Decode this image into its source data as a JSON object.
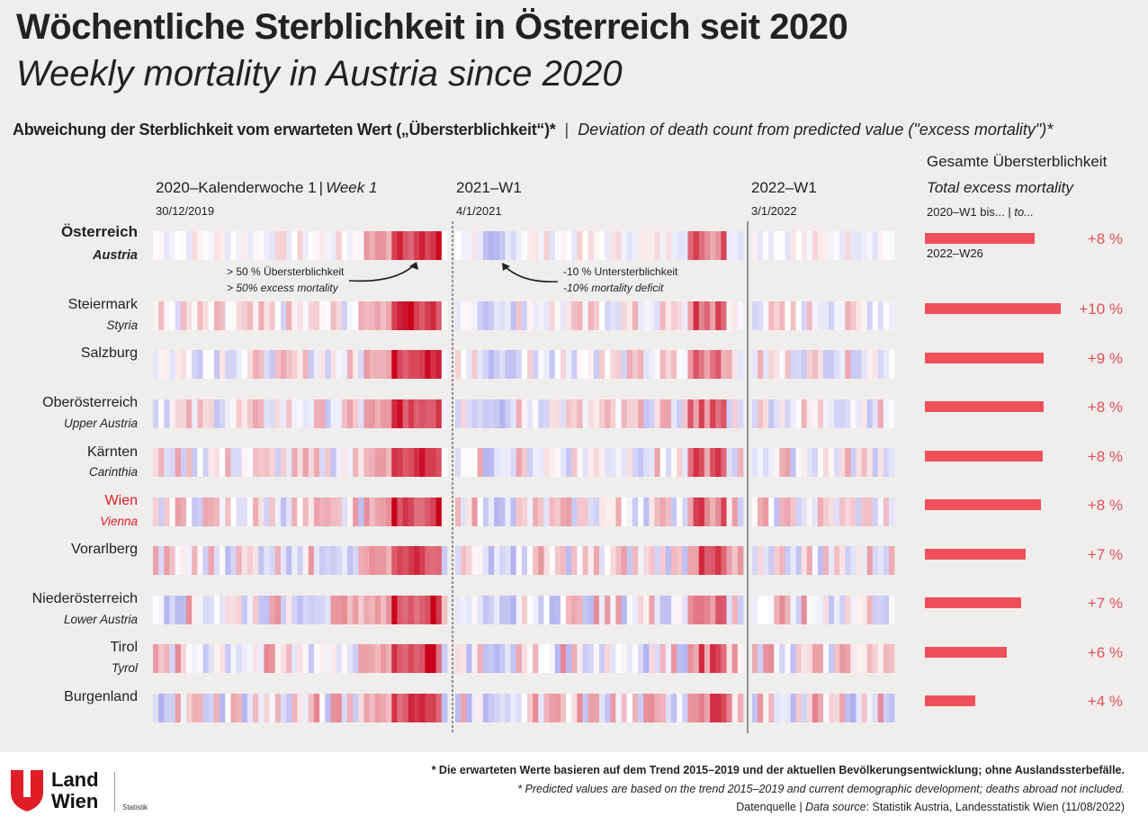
{
  "header": {
    "title_de": "Wöchentliche Sterblichkeit in Österreich seit 2020",
    "title_en": "Weekly mortality in Austria since 2020",
    "subtitle_de": "Abweichung der Sterblichkeit vom erwarteten Wert („Übersterblichkeit“)*",
    "subtitle_en": "Deviation of death count from predicted value (\"excess mortality\")*"
  },
  "columns": {
    "y2020_label_de": "2020–Kalenderwoche 1",
    "y2020_label_en": "Week 1",
    "y2020_date": "30/12/2019",
    "y2021_label": "2021–W1",
    "y2021_date": "4/1/2021",
    "y2022_label": "2022–W1",
    "y2022_date": "3/1/2022",
    "total_de": "Gesamte Übersterblichkeit",
    "total_en": "Total excess mortality",
    "total_range_de": "2020–W1 bis...",
    "total_range_en": "to...",
    "total_end": "2022–W26"
  },
  "annotations": {
    "high_de": "> 50 % Übersterblichkeit",
    "high_en": "> 50% excess mortality",
    "low_de": "-10 % Untersterblichkeit",
    "low_en": "-10% mortality deficit"
  },
  "chart_data": {
    "type": "heatmap",
    "title": "Wöchentliche Sterblichkeit in Österreich seit 2020",
    "colors": {
      "excess": "#c8001a",
      "deficit": "#3a3ad8",
      "neutral": "#ffffff",
      "bar": "#f0505a",
      "highlight_region": "#e01e28"
    },
    "regions": [
      {
        "name_de": "Österreich",
        "name_en": "Austria",
        "total_pct_label": "+8 %",
        "total_pct": 8
      },
      {
        "name_de": "Steiermark",
        "name_en": "Styria",
        "total_pct_label": "+10 %",
        "total_pct": 10
      },
      {
        "name_de": "Salzburg",
        "name_en": "",
        "total_pct_label": "+9 %",
        "total_pct": 9
      },
      {
        "name_de": "Oberösterreich",
        "name_en": "Upper Austria",
        "total_pct_label": "+8 %",
        "total_pct": 8
      },
      {
        "name_de": "Kärnten",
        "name_en": "Carinthia",
        "total_pct_label": "+8 %",
        "total_pct": 8
      },
      {
        "name_de": "Wien",
        "name_en": "Vienna",
        "total_pct_label": "+8 %",
        "total_pct": 8
      },
      {
        "name_de": "Vorarlberg",
        "name_en": "",
        "total_pct_label": "+7 %",
        "total_pct": 7
      },
      {
        "name_de": "Niederösterreich",
        "name_en": "Lower Austria",
        "total_pct_label": "+7 %",
        "total_pct": 7
      },
      {
        "name_de": "Tirol",
        "name_en": "Tyrol",
        "total_pct_label": "+6 %",
        "total_pct": 6
      },
      {
        "name_de": "Burgenland",
        "name_en": "",
        "total_pct_label": "+4 %",
        "total_pct": 4
      }
    ],
    "weeks_per_year": [
      53,
      52,
      26
    ]
  },
  "footer": {
    "note_de": "* Die erwarteten Werte basieren auf dem Trend 2015–2019 und der aktuellen Bevölkerungsentwicklung; ohne Auslandssterbefälle.",
    "note_en": "* Predicted values are based on the trend 2015–2019 and current demographic development; deaths abroad not included.",
    "source_de": "Datenquelle",
    "source_en": "Data source",
    "source_text": ": Statistik Austria, Landesstatistik Wien (11/08/2022)",
    "logo_line1": "Land",
    "logo_line2": "Wien",
    "logo_dept": "Statistik"
  }
}
